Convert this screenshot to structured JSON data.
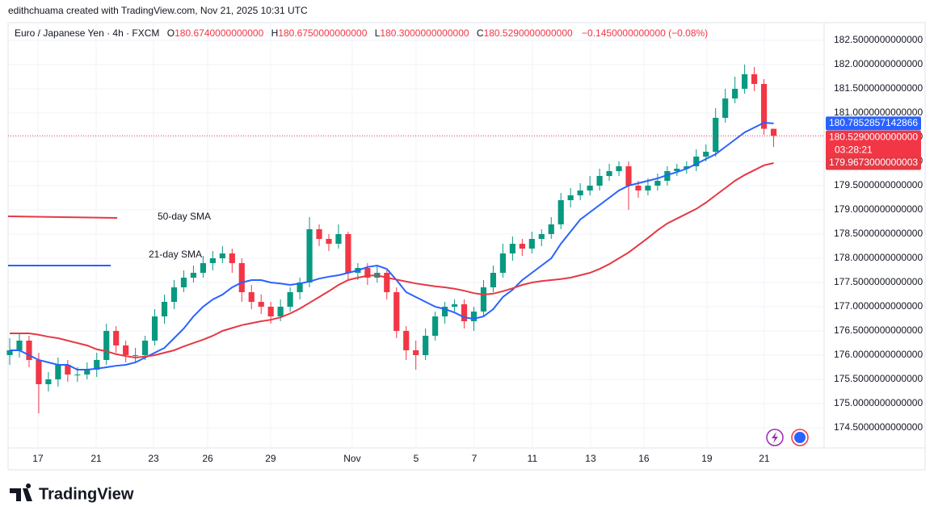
{
  "header": {
    "credit": "edithchuama created with TradingView.com, Nov 21, 2025 10:31 UTC"
  },
  "chart_data": {
    "type": "candlestick",
    "symbol": "Euro / Japanese Yen · 4h · FXCM",
    "ohlc_legend": [
      {
        "key": "O",
        "text": "180.6740000000000"
      },
      {
        "key": "H",
        "text": "180.6750000000000"
      },
      {
        "key": "L",
        "text": "180.3000000000000"
      },
      {
        "key": "C",
        "text": "180.5290000000000"
      }
    ],
    "change": "−0.1450000000000 (−0.08%)",
    "up_color": "#089981",
    "down_color": "#f23645",
    "open": [
      176.0,
      176.1,
      176.3,
      175.9,
      175.4,
      175.5,
      175.8,
      175.6,
      175.6,
      175.7,
      175.9,
      176.5,
      176.2,
      176.0,
      176.0,
      176.3,
      176.8,
      177.1,
      177.4,
      177.6,
      177.7,
      177.9,
      178.0,
      178.1,
      177.9,
      177.3,
      177.1,
      177.0,
      176.8,
      177.0,
      177.3,
      177.5,
      178.6,
      178.4,
      178.3,
      178.5,
      177.7,
      177.8,
      177.6,
      177.7,
      177.3,
      176.5,
      176.1,
      176.0,
      176.4,
      176.8,
      177.0,
      177.05,
      176.7,
      176.9,
      177.4,
      177.7,
      178.1,
      178.3,
      178.2,
      178.4,
      178.5,
      178.7,
      179.2,
      179.3,
      179.4,
      179.5,
      179.7,
      179.8,
      179.9,
      179.5,
      179.4,
      179.5,
      179.6,
      179.8,
      179.85,
      179.9,
      180.1,
      180.2,
      180.9,
      181.3,
      181.5,
      181.8,
      181.6,
      180.674
    ],
    "high": [
      176.35,
      176.45,
      176.4,
      176.05,
      175.65,
      175.95,
      175.9,
      175.75,
      175.85,
      176.05,
      176.65,
      176.6,
      176.3,
      176.15,
      176.4,
      176.95,
      177.25,
      177.55,
      177.75,
      177.85,
      178.05,
      178.15,
      178.25,
      178.2,
      178.0,
      177.45,
      177.25,
      177.1,
      177.15,
      177.4,
      177.6,
      178.85,
      178.7,
      178.5,
      178.7,
      178.55,
      177.9,
      177.9,
      177.85,
      177.75,
      177.4,
      176.6,
      176.3,
      176.55,
      176.9,
      177.1,
      177.15,
      177.15,
      177.0,
      177.55,
      177.85,
      178.3,
      178.45,
      178.4,
      178.55,
      178.6,
      178.85,
      179.35,
      179.45,
      179.55,
      179.7,
      179.85,
      179.95,
      180.0,
      180.0,
      179.6,
      179.65,
      179.75,
      179.9,
      179.95,
      180.0,
      180.25,
      180.35,
      181.1,
      181.5,
      181.75,
      182.0,
      181.95,
      181.7,
      180.675
    ],
    "low": [
      175.8,
      175.95,
      175.75,
      174.8,
      175.25,
      175.35,
      175.45,
      175.45,
      175.5,
      175.55,
      175.8,
      176.05,
      175.85,
      175.85,
      175.9,
      176.2,
      176.65,
      176.95,
      177.3,
      177.5,
      177.6,
      177.75,
      177.9,
      177.7,
      177.1,
      176.95,
      176.85,
      176.65,
      176.7,
      176.9,
      177.15,
      177.4,
      178.25,
      178.15,
      178.2,
      177.55,
      177.55,
      177.45,
      177.5,
      177.15,
      176.35,
      175.9,
      175.7,
      175.9,
      176.3,
      176.65,
      176.9,
      176.55,
      176.5,
      176.8,
      177.3,
      177.6,
      177.95,
      178.05,
      178.1,
      178.25,
      178.4,
      178.6,
      179.05,
      179.2,
      179.3,
      179.4,
      179.6,
      179.7,
      179.0,
      179.25,
      179.3,
      179.4,
      179.5,
      179.7,
      179.75,
      179.8,
      180.0,
      180.1,
      180.8,
      181.2,
      181.4,
      181.45,
      180.55,
      180.3
    ],
    "close": [
      176.1,
      176.3,
      175.9,
      175.4,
      175.5,
      175.8,
      175.6,
      175.6,
      175.7,
      175.9,
      176.5,
      176.2,
      176.0,
      176.0,
      176.3,
      176.8,
      177.1,
      177.4,
      177.6,
      177.7,
      177.9,
      178.0,
      178.1,
      177.9,
      177.3,
      177.1,
      177.0,
      176.8,
      177.0,
      177.3,
      177.5,
      178.6,
      178.4,
      178.3,
      178.5,
      177.7,
      177.8,
      177.6,
      177.7,
      177.3,
      176.5,
      176.1,
      176.0,
      176.4,
      176.8,
      177.0,
      177.05,
      176.7,
      176.9,
      177.4,
      177.7,
      178.1,
      178.3,
      178.2,
      178.4,
      178.5,
      178.7,
      179.2,
      179.3,
      179.4,
      179.5,
      179.7,
      179.8,
      179.9,
      179.5,
      179.4,
      179.5,
      179.6,
      179.8,
      179.85,
      179.9,
      180.1,
      180.2,
      180.9,
      181.3,
      181.5,
      181.8,
      181.6,
      180.674,
      180.529
    ],
    "series": [
      {
        "name": "21-day SMA",
        "color": "#2962ff",
        "last_label": "180.7852857142866",
        "values": [
          176.1,
          176.1,
          176.0,
          175.9,
          175.85,
          175.8,
          175.8,
          175.7,
          175.7,
          175.72,
          175.75,
          175.78,
          175.8,
          175.85,
          175.95,
          176.05,
          176.15,
          176.35,
          176.55,
          176.8,
          177.0,
          177.15,
          177.25,
          177.4,
          177.5,
          177.55,
          177.55,
          177.5,
          177.48,
          177.45,
          177.48,
          177.52,
          177.58,
          177.62,
          177.65,
          177.7,
          177.75,
          177.82,
          177.85,
          177.78,
          177.55,
          177.3,
          177.2,
          177.1,
          177.0,
          176.95,
          176.88,
          176.78,
          176.75,
          176.8,
          176.95,
          177.2,
          177.35,
          177.55,
          177.7,
          177.85,
          178.0,
          178.3,
          178.55,
          178.8,
          178.95,
          179.1,
          179.25,
          179.4,
          179.5,
          179.55,
          179.6,
          179.65,
          179.72,
          179.78,
          179.85,
          179.95,
          180.05,
          180.15,
          180.3,
          180.45,
          180.6,
          180.7,
          180.8,
          180.7852857142866
        ]
      },
      {
        "name": "50-day SMA",
        "color": "#e53945",
        "last_label": "179.9673000000003",
        "values": [
          176.45,
          176.45,
          176.45,
          176.42,
          176.38,
          176.35,
          176.3,
          176.25,
          176.2,
          176.12,
          176.08,
          176.02,
          175.98,
          175.95,
          175.97,
          176.0,
          176.05,
          176.1,
          176.18,
          176.25,
          176.32,
          176.4,
          176.5,
          176.56,
          176.62,
          176.66,
          176.7,
          176.73,
          176.78,
          176.86,
          176.96,
          177.08,
          177.2,
          177.32,
          177.45,
          177.55,
          177.6,
          177.64,
          177.65,
          177.6,
          177.56,
          177.52,
          177.48,
          177.45,
          177.42,
          177.4,
          177.37,
          177.33,
          177.28,
          177.25,
          177.27,
          177.32,
          177.38,
          177.45,
          177.5,
          177.53,
          177.55,
          177.57,
          177.6,
          177.65,
          177.7,
          177.78,
          177.88,
          178.0,
          178.12,
          178.27,
          178.42,
          178.58,
          178.72,
          178.82,
          178.92,
          179.02,
          179.15,
          179.3,
          179.45,
          179.6,
          179.72,
          179.82,
          179.92,
          179.9673000000003
        ]
      }
    ],
    "last_price": {
      "value": 180.529,
      "label": "180.5290000000000",
      "countdown": "03:28:21"
    },
    "ylim": [
      174.083,
      182.867
    ],
    "yticks": [
      {
        "value": 174.5,
        "label": "174.5000000000000"
      },
      {
        "value": 175,
        "label": "175.0000000000000"
      },
      {
        "value": 175.5,
        "label": "175.5000000000000"
      },
      {
        "value": 176,
        "label": "176.0000000000000"
      },
      {
        "value": 176.5,
        "label": "176.5000000000000"
      },
      {
        "value": 177,
        "label": "177.0000000000000"
      },
      {
        "value": 177.5,
        "label": "177.5000000000000"
      },
      {
        "value": 178,
        "label": "178.0000000000000"
      },
      {
        "value": 178.5,
        "label": "178.5000000000000"
      },
      {
        "value": 179,
        "label": "179.0000000000000"
      },
      {
        "value": 179.5,
        "label": "179.5000000000000"
      },
      {
        "value": 180,
        "label": "180.0000000000000"
      },
      {
        "value": 180.5,
        "label": "180.5000000000000"
      },
      {
        "value": 181,
        "label": "181.0000000000000"
      },
      {
        "value": 181.5,
        "label": "181.5000000000000"
      },
      {
        "value": 182,
        "label": "182.0000000000000"
      },
      {
        "value": 182.5,
        "label": "182.5000000000000"
      }
    ],
    "xlim": [
      -0.17,
      84.22
    ],
    "xticks": [
      {
        "value": 2.92,
        "label": "17"
      },
      {
        "value": 8.94,
        "label": "21"
      },
      {
        "value": 14.87,
        "label": "23"
      },
      {
        "value": 20.47,
        "label": "26"
      },
      {
        "value": 26.98,
        "label": "29"
      },
      {
        "value": 35.42,
        "label": "Nov"
      },
      {
        "value": 42.02,
        "label": "5"
      },
      {
        "value": 48.04,
        "label": "7"
      },
      {
        "value": 54.05,
        "label": "11"
      },
      {
        "value": 60.07,
        "label": "13"
      },
      {
        "value": 65.58,
        "label": "16"
      },
      {
        "value": 72.1,
        "label": "19"
      },
      {
        "value": 78.03,
        "label": "21"
      }
    ],
    "grid": true
  },
  "footer": {
    "logo": "TradingView"
  }
}
